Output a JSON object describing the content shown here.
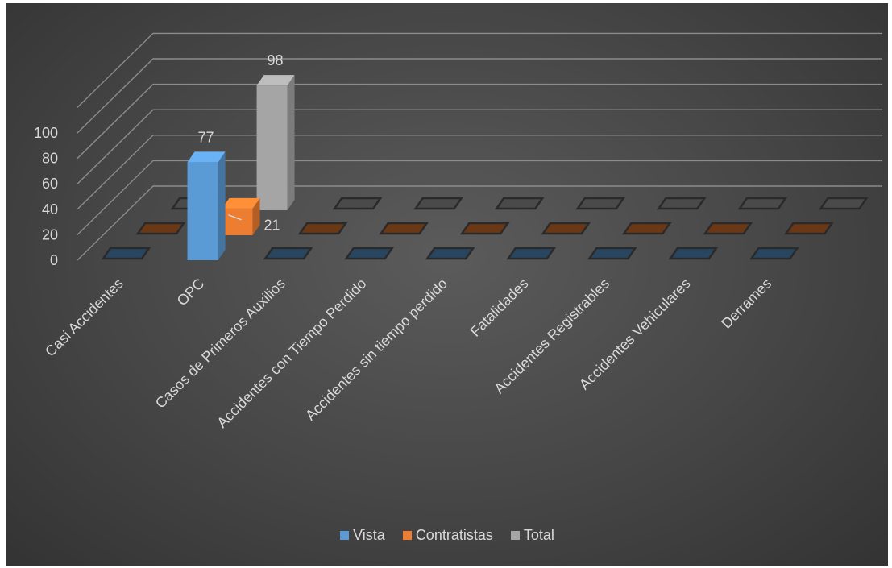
{
  "chart_data": {
    "type": "bar",
    "style": "3d-clustered-column",
    "categories": [
      "Casi Accidentes",
      "OPC",
      "Casos de Primeros Auxilios",
      "Accidentes con Tiempo Perdido",
      "Accidentes sin tiempo perdido",
      "Fatalidades",
      "Accidentes Registrables",
      "Accidentes Vehiculares",
      "Derrames"
    ],
    "series": [
      {
        "name": "Vista",
        "color": "#5b9bd5",
        "values": [
          0,
          77,
          0,
          0,
          0,
          0,
          0,
          0,
          0
        ],
        "labels": [
          "",
          "77",
          "",
          "",
          "",
          "",
          "",
          "",
          ""
        ]
      },
      {
        "name": "Contratistas",
        "color": "#ed7d31",
        "values": [
          0,
          21,
          0,
          0,
          0,
          0,
          0,
          0,
          0
        ],
        "labels": [
          "",
          "21",
          "",
          "",
          "",
          "",
          "",
          "",
          ""
        ]
      },
      {
        "name": "Total",
        "color": "#a5a5a5",
        "values": [
          0,
          98,
          0,
          0,
          0,
          0,
          0,
          0,
          0
        ],
        "labels": [
          "",
          "98",
          "",
          "",
          "",
          "",
          "",
          "",
          ""
        ]
      }
    ],
    "y_ticks": [
      "0",
      "20",
      "40",
      "60",
      "80",
      "100"
    ],
    "ylim": [
      0,
      120
    ],
    "grid": true,
    "legend": "bottom"
  }
}
